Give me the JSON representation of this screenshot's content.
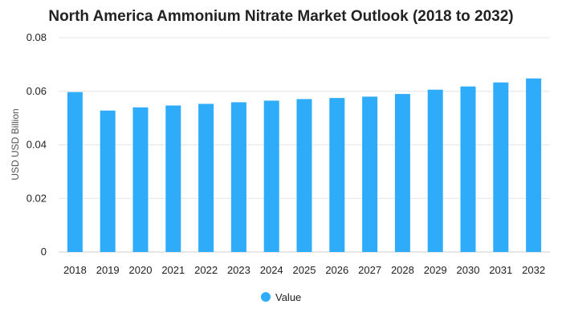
{
  "chart_data": {
    "type": "bar",
    "title": "North America Ammonium Nitrate Market Outlook (2018 to 2032)",
    "xlabel": "",
    "ylabel": "USD USD Billion",
    "categories": [
      "2018",
      "2019",
      "2020",
      "2021",
      "2022",
      "2023",
      "2024",
      "2025",
      "2026",
      "2027",
      "2028",
      "2029",
      "2030",
      "2031",
      "2032"
    ],
    "series": [
      {
        "name": "Value",
        "values": [
          0.0597,
          0.0528,
          0.054,
          0.0547,
          0.0553,
          0.0559,
          0.0565,
          0.0571,
          0.0575,
          0.058,
          0.059,
          0.0606,
          0.0618,
          0.0633,
          0.0648
        ]
      }
    ],
    "ylim": [
      0,
      0.08
    ],
    "yticks": [
      "0",
      "0.02",
      "0.04",
      "0.06",
      "0.08"
    ],
    "grid": true,
    "legend_position": "bottom-center",
    "colors": {
      "bar": "#2eacfa"
    }
  }
}
